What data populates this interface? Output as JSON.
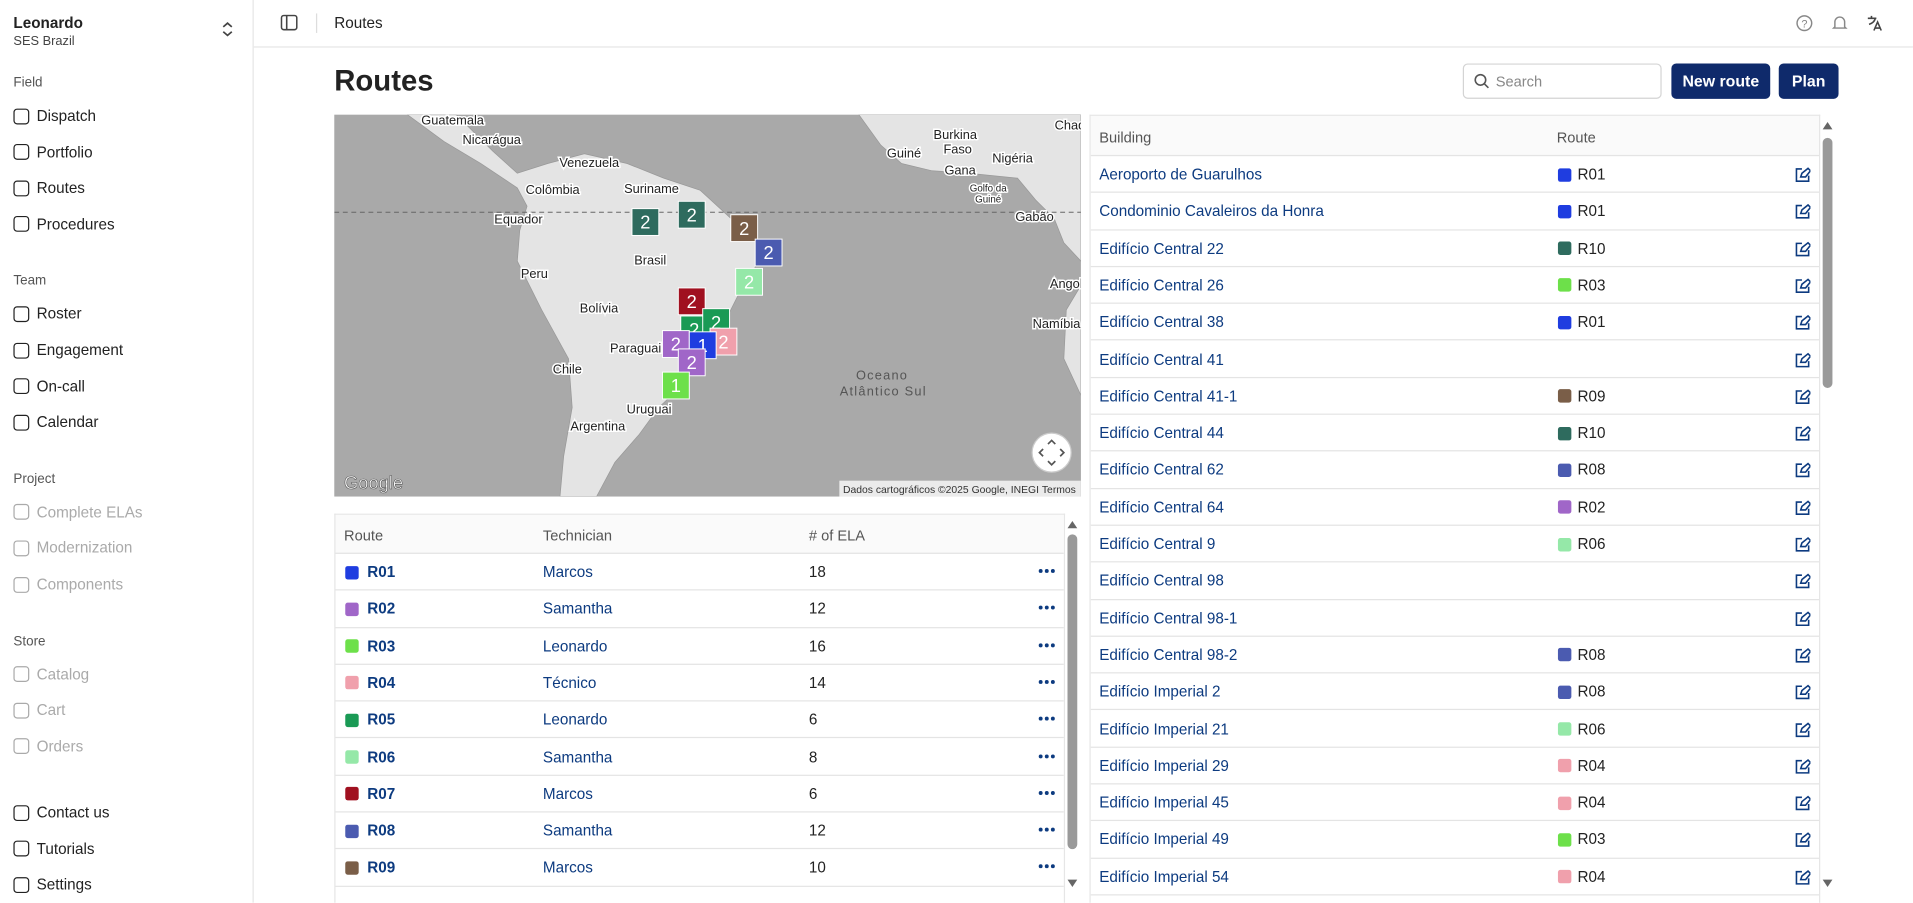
{
  "sidebar": {
    "org_name": "Leonardo",
    "org_sub": "SES Brazil",
    "sections": [
      {
        "title": "Field",
        "items": [
          {
            "label": "Dispatch"
          },
          {
            "label": "Portfolio"
          },
          {
            "label": "Routes"
          },
          {
            "label": "Procedures"
          }
        ]
      },
      {
        "title": "Team",
        "items": [
          {
            "label": "Roster"
          },
          {
            "label": "Engagement"
          },
          {
            "label": "On-call"
          },
          {
            "label": "Calendar"
          }
        ]
      },
      {
        "title": "Project",
        "items": [
          {
            "label": "Complete ELAs",
            "disabled": true
          },
          {
            "label": "Modernization",
            "disabled": true
          },
          {
            "label": "Components",
            "disabled": true
          }
        ]
      },
      {
        "title": "Store",
        "items": [
          {
            "label": "Catalog",
            "disabled": true
          },
          {
            "label": "Cart",
            "disabled": true
          },
          {
            "label": "Orders",
            "disabled": true
          }
        ]
      }
    ],
    "footer": [
      {
        "label": "Contact us"
      },
      {
        "label": "Tutorials"
      },
      {
        "label": "Settings"
      }
    ]
  },
  "topbar": {
    "breadcrumb": "Routes"
  },
  "header": {
    "title": "Routes",
    "search_placeholder": "Search",
    "buttons": [
      "New route",
      "Plan"
    ]
  },
  "map": {
    "labels": [
      "Guatemala",
      "Nicarágua",
      "Venezuela",
      "Suriname",
      "Colômbia",
      "Equador",
      "Brasil",
      "Peru",
      "Bolívia",
      "Paraguai",
      "Chile",
      "Uruguai",
      "Argentina",
      "Oceano",
      "Atlântico Sul",
      "Burkina",
      "Faso",
      "Guiné",
      "Gana",
      "Nigéria",
      "Golfo da",
      "Guiné",
      "Gabão",
      "Angol",
      "Namíbia",
      "Chad"
    ],
    "markers": [
      {
        "label": "2",
        "color": "#2e6b5e"
      },
      {
        "label": "2",
        "color": "#2e6b5e"
      },
      {
        "label": "2",
        "color": "#7a5e48"
      },
      {
        "label": "2",
        "color": "#4b5bb0"
      },
      {
        "label": "2",
        "color": "#95e8a8"
      },
      {
        "label": "2",
        "color": "#a01020"
      },
      {
        "label": "2",
        "color": "#1a9a55"
      },
      {
        "label": "2",
        "color": "#1a9a55"
      },
      {
        "label": "2",
        "color": "#f0a0ac"
      },
      {
        "label": "2",
        "color": "#a066c8"
      },
      {
        "label": "1",
        "color": "#1f3de0"
      },
      {
        "label": "2",
        "color": "#a066c8"
      },
      {
        "label": "1",
        "color": "#6de04a"
      }
    ],
    "logo": "Google",
    "attribution": "Dados cartográficos ©2025 Google, INEGI",
    "terms": "Termos"
  },
  "routes_table": {
    "columns": [
      "Route",
      "Technician",
      "# of ELA"
    ],
    "rows": [
      {
        "route": "R01",
        "color": "#1f3de0",
        "technician": "Marcos",
        "ela": 18
      },
      {
        "route": "R02",
        "color": "#a066c8",
        "technician": "Samantha",
        "ela": 12
      },
      {
        "route": "R03",
        "color": "#6de04a",
        "technician": "Leonardo",
        "ela": 16
      },
      {
        "route": "R04",
        "color": "#f0a0ac",
        "technician": "Técnico",
        "ela": 14
      },
      {
        "route": "R05",
        "color": "#1a9a55",
        "technician": "Leonardo",
        "ela": 6
      },
      {
        "route": "R06",
        "color": "#95e8a8",
        "technician": "Samantha",
        "ela": 8
      },
      {
        "route": "R07",
        "color": "#a01020",
        "technician": "Marcos",
        "ela": 6
      },
      {
        "route": "R08",
        "color": "#4b5bb0",
        "technician": "Samantha",
        "ela": 12
      },
      {
        "route": "R09",
        "color": "#7a5e48",
        "technician": "Marcos",
        "ela": 10
      }
    ]
  },
  "buildings_table": {
    "columns": [
      "Building",
      "Route"
    ],
    "rows": [
      {
        "building": "Aeroporto de Guarulhos",
        "route": "R01",
        "color": "#1f3de0"
      },
      {
        "building": "Condominio Cavaleiros da Honra",
        "route": "R01",
        "color": "#1f3de0"
      },
      {
        "building": "Edifício Central 22",
        "route": "R10",
        "color": "#2e6b5e"
      },
      {
        "building": "Edifício Central 26",
        "route": "R03",
        "color": "#6de04a"
      },
      {
        "building": "Edifício Central 38",
        "route": "R01",
        "color": "#1f3de0"
      },
      {
        "building": "Edifício Central 41"
      },
      {
        "building": "Edifício Central 41-1",
        "route": "R09",
        "color": "#7a5e48"
      },
      {
        "building": "Edifício Central 44",
        "route": "R10",
        "color": "#2e6b5e"
      },
      {
        "building": "Edifício Central 62",
        "route": "R08",
        "color": "#4b5bb0"
      },
      {
        "building": "Edifício Central 64",
        "route": "R02",
        "color": "#a066c8"
      },
      {
        "building": "Edifício Central 9",
        "route": "R06",
        "color": "#95e8a8"
      },
      {
        "building": "Edifício Central 98"
      },
      {
        "building": "Edifício Central 98-1"
      },
      {
        "building": "Edifício Central 98-2",
        "route": "R08",
        "color": "#4b5bb0"
      },
      {
        "building": "Edifício Imperial 2",
        "route": "R08",
        "color": "#4b5bb0"
      },
      {
        "building": "Edifício Imperial 21",
        "route": "R06",
        "color": "#95e8a8"
      },
      {
        "building": "Edifício Imperial 29",
        "route": "R04",
        "color": "#f0a0ac"
      },
      {
        "building": "Edifício Imperial 45",
        "route": "R04",
        "color": "#f0a0ac"
      },
      {
        "building": "Edifício Imperial 49",
        "route": "R03",
        "color": "#6de04a"
      },
      {
        "building": "Edifício Imperial 54",
        "route": "R04",
        "color": "#f0a0ac"
      }
    ]
  }
}
